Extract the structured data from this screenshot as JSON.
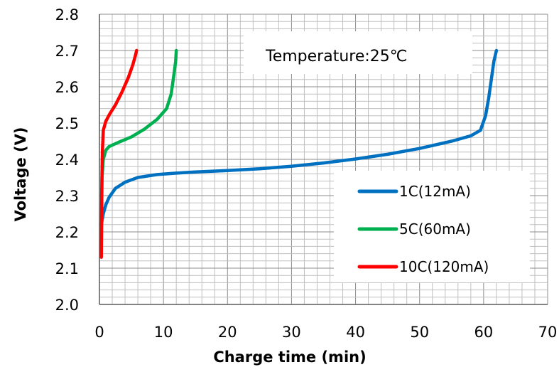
{
  "chart_data": {
    "type": "line",
    "title": "",
    "xlabel": "Charge time (min)",
    "ylabel": "Voltage (V)",
    "xlim": [
      0,
      70
    ],
    "ylim": [
      2.0,
      2.8
    ],
    "xticks": [
      "0",
      "10",
      "20",
      "30",
      "40",
      "50",
      "60",
      "70"
    ],
    "yticks": [
      "2.0",
      "2.1",
      "2.2",
      "2.3",
      "2.4",
      "2.5",
      "2.6",
      "2.7",
      "2.8"
    ],
    "grid": true,
    "legend_position": "bottom-right",
    "annotation": "Temperature:25℃",
    "series": [
      {
        "name": "1C(12mA)",
        "color": "#0070C0",
        "x": [
          0.3,
          0.6,
          1,
          1.5,
          2.5,
          4,
          6,
          9,
          12,
          15,
          20,
          25,
          30,
          35,
          40,
          45,
          50,
          55,
          58,
          59.5,
          60.3,
          60.8,
          61.2,
          61.6,
          62
        ],
        "y": [
          2.22,
          2.25,
          2.275,
          2.295,
          2.32,
          2.337,
          2.35,
          2.358,
          2.362,
          2.365,
          2.369,
          2.374,
          2.381,
          2.39,
          2.401,
          2.414,
          2.43,
          2.45,
          2.465,
          2.48,
          2.52,
          2.57,
          2.62,
          2.67,
          2.7
        ]
      },
      {
        "name": "5C(60mA)",
        "color": "#00B050",
        "x": [
          0.3,
          0.4,
          0.6,
          1,
          1.5,
          3,
          5,
          7,
          9,
          10.5,
          11.2,
          11.6,
          11.9,
          12
        ],
        "y": [
          2.15,
          2.35,
          2.4,
          2.425,
          2.435,
          2.447,
          2.462,
          2.483,
          2.51,
          2.54,
          2.58,
          2.63,
          2.67,
          2.7
        ]
      },
      {
        "name": "10C(120mA)",
        "color": "#FF0000",
        "x": [
          0.3,
          0.35,
          0.45,
          0.6,
          1,
          1.6,
          2.5,
          3.5,
          4.5,
          5.2,
          5.6,
          5.8
        ],
        "y": [
          2.13,
          2.3,
          2.42,
          2.48,
          2.505,
          2.525,
          2.55,
          2.585,
          2.625,
          2.66,
          2.685,
          2.7
        ]
      }
    ]
  }
}
